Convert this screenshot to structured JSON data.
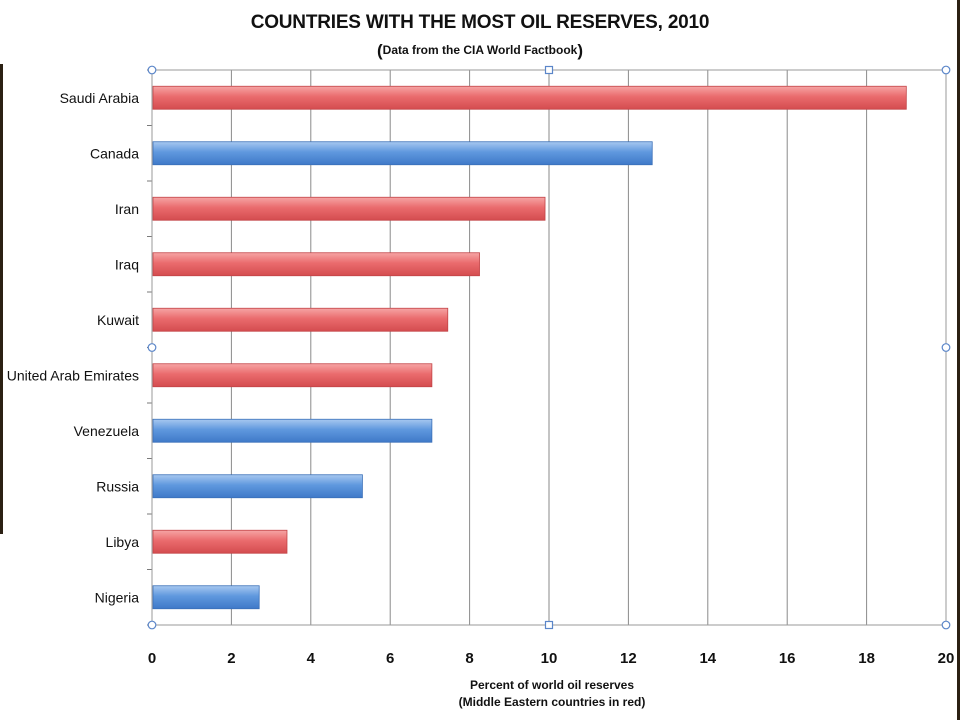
{
  "chart_data": {
    "type": "bar",
    "orientation": "horizontal",
    "title": "COUNTRIES WITH THE MOST OIL RESERVES, 2010",
    "subtitle": "Data from the CIA World Factbook",
    "xlabel_line1": "Percent of world oil reserves",
    "xlabel_line2": "(Middle Eastern countries in red)",
    "categories": [
      "Saudi Arabia",
      "Canada",
      "Iran",
      "Iraq",
      "Kuwait",
      "United Arab Emirates",
      "Venezuela",
      "Russia",
      "Libya",
      "Nigeria"
    ],
    "values": [
      19.0,
      12.6,
      9.9,
      8.25,
      7.45,
      7.05,
      7.05,
      5.3,
      3.4,
      2.7
    ],
    "middle_eastern": [
      true,
      false,
      true,
      true,
      true,
      true,
      false,
      false,
      true,
      false
    ],
    "xlim": [
      0,
      20
    ],
    "xticks": [
      0,
      2,
      4,
      6,
      8,
      10,
      12,
      14,
      16,
      18,
      20
    ],
    "grid": true,
    "colors": {
      "middle_east": "#e8686b",
      "other": "#5a95dc"
    }
  }
}
